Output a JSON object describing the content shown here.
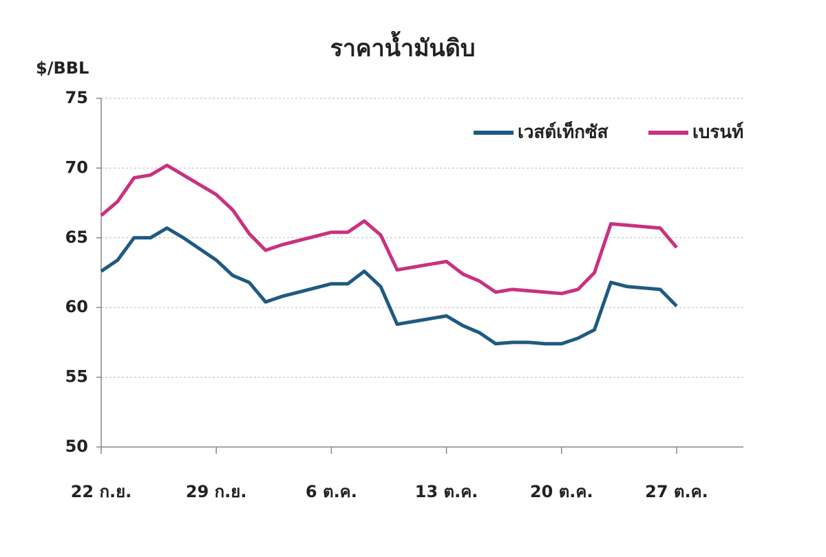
{
  "chart_data": {
    "type": "line",
    "title": "ราคาน้ำมันดิบ",
    "y_label": "$/BBL",
    "categories": [
      "22 ก.ย.",
      null,
      null,
      null,
      null,
      null,
      null,
      "29 ก.ย.",
      null,
      null,
      null,
      null,
      null,
      null,
      "6 ต.ค.",
      null,
      null,
      null,
      null,
      null,
      null,
      "13 ต.ค.",
      null,
      null,
      null,
      null,
      null,
      null,
      "20 ต.ค.",
      null,
      null,
      null,
      null,
      null,
      null,
      "27 ต.ค."
    ],
    "series": [
      {
        "name": "เวสต์เท็กซัส",
        "color": "#1f5a80",
        "values": [
          62.6,
          63.4,
          65.0,
          65.0,
          65.7,
          65.0,
          64.2,
          63.4,
          62.3,
          61.8,
          60.4,
          60.8,
          61.1,
          61.4,
          61.7,
          61.7,
          62.6,
          61.5,
          58.8,
          59.0,
          59.2,
          59.4,
          58.7,
          58.2,
          57.4,
          57.5,
          57.5,
          57.4,
          57.4,
          57.8,
          58.4,
          61.8,
          61.5,
          61.4,
          61.3,
          60.1
        ]
      },
      {
        "name": "เบรนท์",
        "color": "#c8327f",
        "values": [
          66.6,
          67.6,
          69.3,
          69.5,
          70.2,
          69.5,
          68.8,
          68.1,
          67.0,
          65.3,
          64.1,
          64.5,
          64.8,
          65.1,
          65.4,
          65.4,
          66.2,
          65.2,
          62.7,
          62.9,
          63.1,
          63.3,
          62.4,
          61.9,
          61.1,
          61.3,
          61.2,
          61.1,
          61.0,
          61.3,
          62.5,
          66.0,
          65.9,
          65.8,
          65.7,
          64.3
        ]
      }
    ],
    "ylim": [
      50,
      75
    ],
    "yticks": [
      50,
      55,
      60,
      65,
      70,
      75
    ],
    "grid": true,
    "legend": "top-right"
  }
}
